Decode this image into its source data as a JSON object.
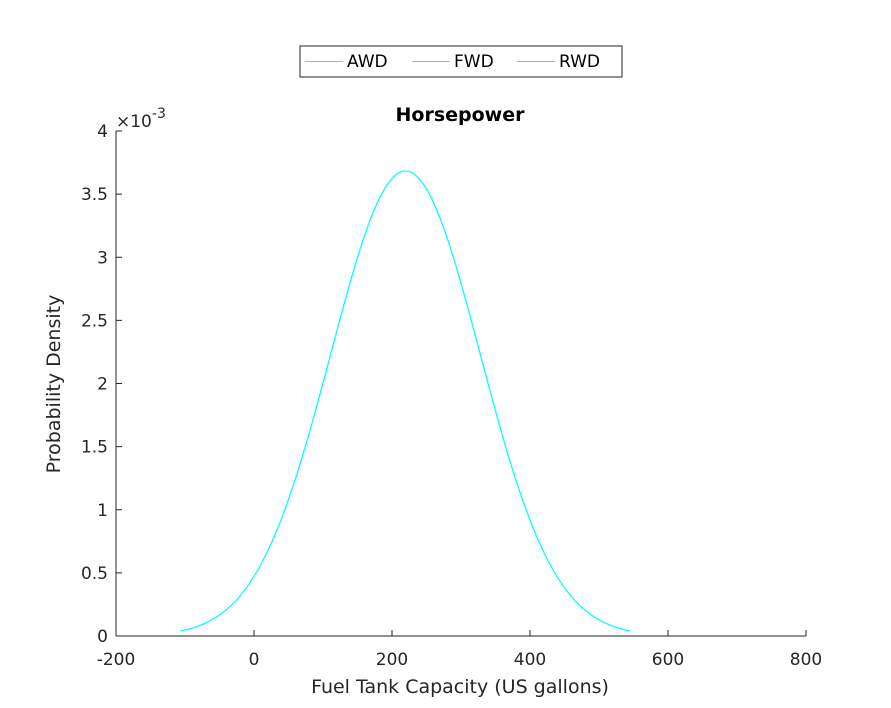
{
  "chart_data": {
    "type": "line",
    "title": "Horsepower",
    "xlabel": "Fuel Tank Capacity (US gallons)",
    "ylabel": "Probability Density",
    "xlim": [
      -200,
      800
    ],
    "ylim": [
      0,
      0.004
    ],
    "x_ticks": [
      -200,
      0,
      200,
      400,
      600,
      800
    ],
    "x_tick_labels": [
      "-200",
      "0",
      "200",
      "400",
      "600",
      "800"
    ],
    "y_ticks": [
      0,
      0.0005,
      0.001,
      0.0015,
      0.002,
      0.0025,
      0.003,
      0.0035,
      0.004
    ],
    "y_tick_labels": [
      "0",
      "0.5",
      "1",
      "1.5",
      "2",
      "2.5",
      "3",
      "3.5",
      "4"
    ],
    "y_exponent_prefix": "×10",
    "y_exponent_power": "-3",
    "grid": false,
    "legend": {
      "placement": "top-center-outside",
      "orientation": "horizontal",
      "entries": [
        "AWD",
        "FWD",
        "RWD"
      ]
    },
    "series": [
      {
        "name": "AWD",
        "color": "#00ffff",
        "distribution": "normal",
        "mean": 219.5,
        "std": 108.3,
        "x_range": [
          -106,
          545
        ]
      },
      {
        "name": "FWD",
        "color": "#00ffff",
        "distribution": "normal",
        "mean": 219.5,
        "std": 108.3,
        "x_range": [
          -106,
          545
        ]
      },
      {
        "name": "RWD",
        "color": "#00ffff",
        "distribution": "normal",
        "mean": 219.5,
        "std": 108.3,
        "x_range": [
          -106,
          545
        ]
      }
    ]
  }
}
